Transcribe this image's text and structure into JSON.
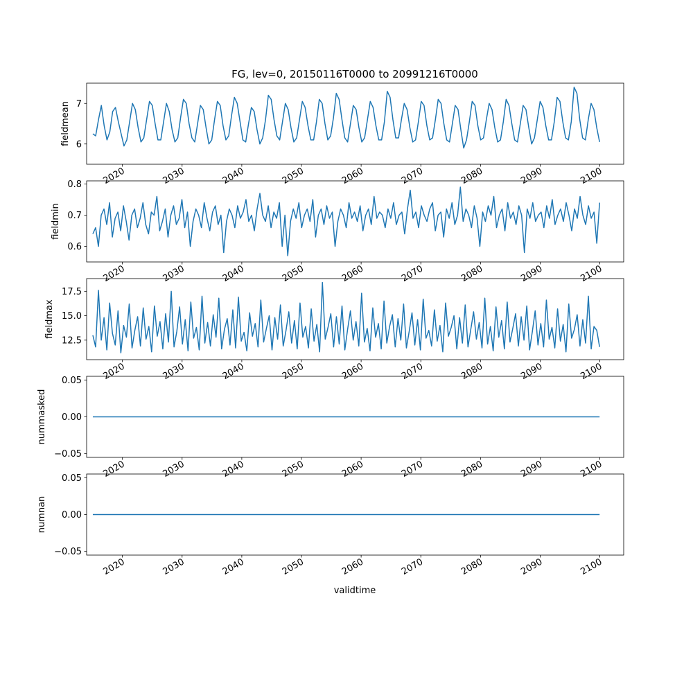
{
  "figure": {
    "title": "FG, lev=0, 20150116T0000 to 20991216T0000",
    "xlabel": "validtime"
  },
  "colors": {
    "line": "#1f77b4",
    "axes": "#000000",
    "background": "#ffffff"
  },
  "chart_data": [
    {
      "type": "line",
      "ylabel": "fieldmean",
      "x_start": "2015-01-16",
      "x_end": "2099-12-16",
      "xlim": [
        2014.0,
        2104.0
      ],
      "ylim": [
        5.5,
        7.5
      ],
      "yticks": [
        "6",
        "7"
      ],
      "ytick_values": [
        6,
        7
      ],
      "xticks": [
        "2020",
        "2030",
        "2040",
        "2050",
        "2060",
        "2070",
        "2080",
        "2090",
        "2100"
      ],
      "xtick_values": [
        2020,
        2030,
        2040,
        2050,
        2060,
        2070,
        2080,
        2090,
        2100
      ],
      "series": [
        {
          "values": [
            6.25,
            6.2,
            6.6,
            6.95,
            6.45,
            6.1,
            6.3,
            6.8,
            6.9,
            6.55,
            6.25,
            5.95,
            6.1,
            6.55,
            7.0,
            6.85,
            6.4,
            6.05,
            6.15,
            6.6,
            7.05,
            6.95,
            6.5,
            6.1,
            6.1,
            6.55,
            7.0,
            6.8,
            6.35,
            6.05,
            6.15,
            6.65,
            7.1,
            7.0,
            6.5,
            6.15,
            6.05,
            6.5,
            6.95,
            6.85,
            6.4,
            6.0,
            6.1,
            6.6,
            7.05,
            6.95,
            6.45,
            6.1,
            6.2,
            6.7,
            7.15,
            7.0,
            6.55,
            6.1,
            6.05,
            6.5,
            6.9,
            6.8,
            6.35,
            6.0,
            6.15,
            6.6,
            7.2,
            7.1,
            6.6,
            6.2,
            6.1,
            6.55,
            7.0,
            6.85,
            6.4,
            6.05,
            6.15,
            6.6,
            7.05,
            6.9,
            6.45,
            6.1,
            6.1,
            6.55,
            7.1,
            7.0,
            6.5,
            6.1,
            6.2,
            6.65,
            7.25,
            7.1,
            6.6,
            6.15,
            6.05,
            6.5,
            6.95,
            6.85,
            6.4,
            6.05,
            6.15,
            6.6,
            7.05,
            6.9,
            6.45,
            6.1,
            6.1,
            6.55,
            7.3,
            7.15,
            6.6,
            6.15,
            6.15,
            6.6,
            7.0,
            6.85,
            6.4,
            6.05,
            6.1,
            6.55,
            7.05,
            6.95,
            6.45,
            6.1,
            6.15,
            6.6,
            7.1,
            7.0,
            6.5,
            6.1,
            6.05,
            6.5,
            6.95,
            6.85,
            6.35,
            5.9,
            6.1,
            6.55,
            7.05,
            6.95,
            6.45,
            6.1,
            6.15,
            6.6,
            7.0,
            6.85,
            6.4,
            6.05,
            6.1,
            6.55,
            7.1,
            6.95,
            6.5,
            6.1,
            6.05,
            6.5,
            6.95,
            6.85,
            6.4,
            6.0,
            6.15,
            6.6,
            7.05,
            6.9,
            6.45,
            6.1,
            6.1,
            6.55,
            7.15,
            7.05,
            6.55,
            6.15,
            6.1,
            6.55,
            7.4,
            7.25,
            6.6,
            6.15,
            6.1,
            6.6,
            7.0,
            6.85,
            6.4,
            6.05
          ],
          "points": 180
        }
      ]
    },
    {
      "type": "line",
      "ylabel": "fieldmin",
      "x_start": "2015-01-16",
      "x_end": "2099-12-16",
      "xlim": [
        2014.0,
        2104.0
      ],
      "ylim": [
        0.55,
        0.81
      ],
      "yticks": [
        "0.6",
        "0.7",
        "0.8"
      ],
      "ytick_values": [
        0.6,
        0.7,
        0.8
      ],
      "xticks": [
        "2020",
        "2030",
        "2040",
        "2050",
        "2060",
        "2070",
        "2080",
        "2090",
        "2100"
      ],
      "xtick_values": [
        2020,
        2030,
        2040,
        2050,
        2060,
        2070,
        2080,
        2090,
        2100
      ],
      "series": [
        {
          "values": [
            0.64,
            0.66,
            0.6,
            0.7,
            0.72,
            0.67,
            0.74,
            0.63,
            0.69,
            0.71,
            0.65,
            0.73,
            0.68,
            0.62,
            0.7,
            0.72,
            0.66,
            0.69,
            0.74,
            0.67,
            0.64,
            0.71,
            0.7,
            0.76,
            0.65,
            0.68,
            0.72,
            0.63,
            0.7,
            0.73,
            0.67,
            0.69,
            0.75,
            0.66,
            0.71,
            0.6,
            0.68,
            0.72,
            0.7,
            0.66,
            0.74,
            0.69,
            0.65,
            0.71,
            0.73,
            0.67,
            0.7,
            0.58,
            0.68,
            0.72,
            0.7,
            0.66,
            0.73,
            0.69,
            0.71,
            0.75,
            0.68,
            0.7,
            0.65,
            0.72,
            0.77,
            0.7,
            0.68,
            0.73,
            0.66,
            0.71,
            0.69,
            0.74,
            0.6,
            0.7,
            0.57,
            0.68,
            0.72,
            0.69,
            0.74,
            0.66,
            0.7,
            0.72,
            0.68,
            0.75,
            0.63,
            0.7,
            0.72,
            0.67,
            0.73,
            0.69,
            0.71,
            0.6,
            0.68,
            0.72,
            0.7,
            0.66,
            0.74,
            0.69,
            0.71,
            0.68,
            0.73,
            0.65,
            0.7,
            0.72,
            0.67,
            0.76,
            0.69,
            0.71,
            0.7,
            0.66,
            0.72,
            0.69,
            0.74,
            0.67,
            0.7,
            0.71,
            0.64,
            0.72,
            0.78,
            0.69,
            0.71,
            0.66,
            0.73,
            0.7,
            0.68,
            0.72,
            0.74,
            0.65,
            0.7,
            0.71,
            0.63,
            0.72,
            0.69,
            0.74,
            0.67,
            0.7,
            0.79,
            0.68,
            0.72,
            0.7,
            0.66,
            0.73,
            0.69,
            0.6,
            0.71,
            0.68,
            0.73,
            0.7,
            0.76,
            0.66,
            0.7,
            0.72,
            0.65,
            0.74,
            0.69,
            0.71,
            0.67,
            0.73,
            0.7,
            0.58,
            0.72,
            0.69,
            0.74,
            0.68,
            0.7,
            0.71,
            0.66,
            0.73,
            0.69,
            0.75,
            0.67,
            0.7,
            0.72,
            0.68,
            0.74,
            0.7,
            0.65,
            0.72,
            0.69,
            0.76,
            0.7,
            0.67,
            0.73,
            0.69,
            0.71,
            0.61,
            0.74
          ],
          "points": 180
        }
      ]
    },
    {
      "type": "line",
      "ylabel": "fieldmax",
      "x_start": "2015-01-16",
      "x_end": "2099-12-16",
      "xlim": [
        2014.0,
        2104.0
      ],
      "ylim": [
        10.5,
        18.8
      ],
      "yticks": [
        "12.5",
        "15.0",
        "17.5"
      ],
      "ytick_values": [
        12.5,
        15.0,
        17.5
      ],
      "xticks": [
        "2020",
        "2030",
        "2040",
        "2050",
        "2060",
        "2070",
        "2080",
        "2090",
        "2100"
      ],
      "xtick_values": [
        2020,
        2030,
        2040,
        2050,
        2060,
        2070,
        2080,
        2090,
        2100
      ],
      "series": [
        {
          "values": [
            13.0,
            11.8,
            17.6,
            12.5,
            14.8,
            11.5,
            16.3,
            13.2,
            12.0,
            15.5,
            11.2,
            14.0,
            12.8,
            16.2,
            11.7,
            13.5,
            14.9,
            11.9,
            15.8,
            12.6,
            13.9,
            11.3,
            16.0,
            12.9,
            14.4,
            11.6,
            15.2,
            12.3,
            17.5,
            11.8,
            13.4,
            15.9,
            12.1,
            14.6,
            11.4,
            16.4,
            12.7,
            13.8,
            11.5,
            17.0,
            12.2,
            14.3,
            11.9,
            15.1,
            12.8,
            16.8,
            11.6,
            13.6,
            14.7,
            12.0,
            15.6,
            11.7,
            16.9,
            12.4,
            13.3,
            11.4,
            15.3,
            12.9,
            14.2,
            11.8,
            16.6,
            12.3,
            13.7,
            15.0,
            11.5,
            14.8,
            12.6,
            16.1,
            11.9,
            13.5,
            15.4,
            12.2,
            14.5,
            11.6,
            16.3,
            12.8,
            13.9,
            11.7,
            15.7,
            12.4,
            14.1,
            11.3,
            18.4,
            12.6,
            13.8,
            15.2,
            11.8,
            14.9,
            12.1,
            16.0,
            11.5,
            13.6,
            15.5,
            12.5,
            14.4,
            11.9,
            17.3,
            12.3,
            13.7,
            11.4,
            15.8,
            12.8,
            14.2,
            11.6,
            16.5,
            12.2,
            13.9,
            15.1,
            11.8,
            14.7,
            12.5,
            16.2,
            11.7,
            13.4,
            15.3,
            12.0,
            14.6,
            11.5,
            16.7,
            12.7,
            13.5,
            11.9,
            15.6,
            12.4,
            14.0,
            11.3,
            16.3,
            12.9,
            13.8,
            15.0,
            11.6,
            14.8,
            12.2,
            16.1,
            11.8,
            13.6,
            15.4,
            12.6,
            14.3,
            11.7,
            16.8,
            12.1,
            13.9,
            11.4,
            15.9,
            12.8,
            14.5,
            11.6,
            16.4,
            12.3,
            13.7,
            15.2,
            11.9,
            14.9,
            12.5,
            16.0,
            11.5,
            13.4,
            15.5,
            12.0,
            14.2,
            11.8,
            16.6,
            12.6,
            13.8,
            11.7,
            15.7,
            12.4,
            14.1,
            11.3,
            16.2,
            12.7,
            13.6,
            15.1,
            11.9,
            14.6,
            12.2,
            17.0,
            11.6,
            13.9,
            13.5,
            11.8
          ],
          "points": 180
        }
      ]
    },
    {
      "type": "line",
      "ylabel": "nummasked",
      "x_start": "2015-01-16",
      "x_end": "2099-12-16",
      "xlim": [
        2014.0,
        2104.0
      ],
      "ylim": [
        -0.055,
        0.055
      ],
      "yticks": [
        "−0.05",
        "0.00",
        "0.05"
      ],
      "ytick_values": [
        -0.05,
        0.0,
        0.05
      ],
      "xticks": [
        "2020",
        "2030",
        "2040",
        "2050",
        "2060",
        "2070",
        "2080",
        "2090",
        "2100"
      ],
      "xtick_values": [
        2020,
        2030,
        2040,
        2050,
        2060,
        2070,
        2080,
        2090,
        2100
      ],
      "series": [
        {
          "values": [
            0,
            0
          ],
          "points": 2
        }
      ]
    },
    {
      "type": "line",
      "ylabel": "numnan",
      "x_start": "2015-01-16",
      "x_end": "2099-12-16",
      "xlim": [
        2014.0,
        2104.0
      ],
      "ylim": [
        -0.055,
        0.055
      ],
      "yticks": [
        "−0.05",
        "0.00",
        "0.05"
      ],
      "ytick_values": [
        -0.05,
        0.0,
        0.05
      ],
      "xticks": [
        "2020",
        "2030",
        "2040",
        "2050",
        "2060",
        "2070",
        "2080",
        "2090",
        "2100"
      ],
      "xtick_values": [
        2020,
        2030,
        2040,
        2050,
        2060,
        2070,
        2080,
        2090,
        2100
      ],
      "series": [
        {
          "values": [
            0,
            0
          ],
          "points": 2
        }
      ]
    }
  ]
}
